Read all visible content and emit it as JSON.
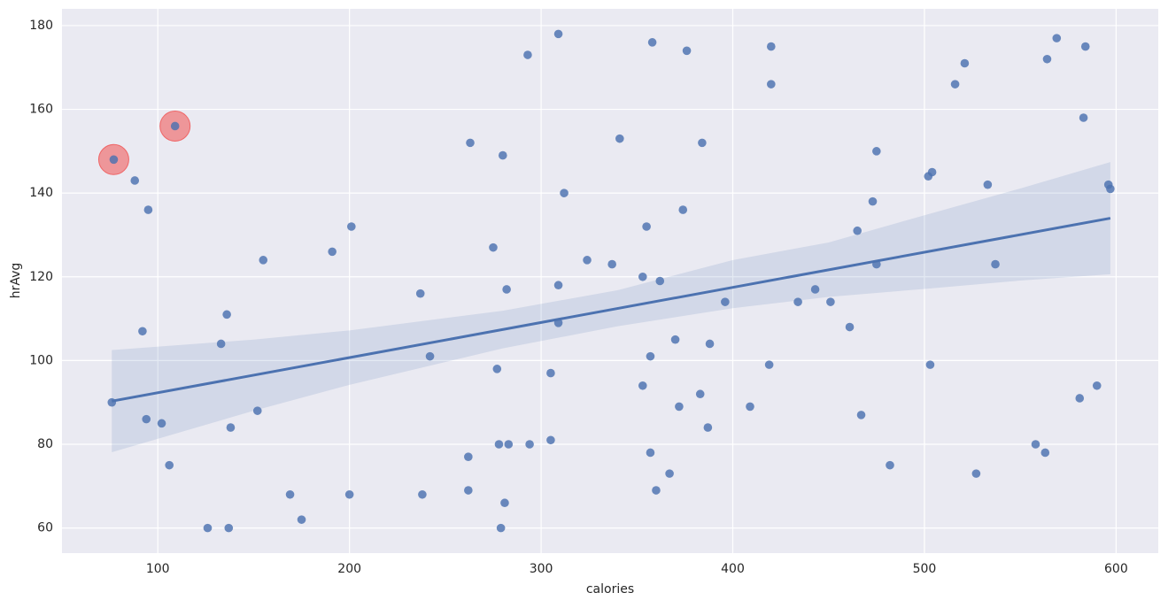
{
  "chart_data": {
    "type": "scatter",
    "x_label": "calories",
    "y_label": "hrAvg",
    "xlim": [
      50,
      622
    ],
    "ylim": [
      54,
      184
    ],
    "xticks": [
      100,
      200,
      300,
      400,
      500,
      600
    ],
    "yticks": [
      60,
      80,
      100,
      120,
      140,
      160,
      180
    ],
    "grid": true,
    "background": "#eaeaf2",
    "series": [
      {
        "color": "#4c72b0",
        "x": [
          76,
          77,
          88,
          95,
          92,
          94,
          102,
          106,
          109,
          126,
          137,
          136,
          133,
          138,
          152,
          155,
          169,
          175,
          191,
          201,
          200,
          237,
          238,
          242,
          263,
          262,
          262,
          275,
          280,
          282,
          277,
          278,
          283,
          281,
          279,
          293,
          294,
          309,
          312,
          309,
          309,
          305,
          305,
          324,
          337,
          341,
          353,
          355,
          353,
          358,
          362,
          357,
          357,
          360,
          367,
          370,
          372,
          374,
          376,
          384,
          383,
          388,
          387,
          396,
          409,
          419,
          420,
          420,
          434,
          443,
          451,
          461,
          465,
          467,
          473,
          475,
          475,
          482,
          502,
          504,
          503,
          516,
          521,
          527,
          533,
          537,
          558,
          563,
          564,
          569,
          581,
          583,
          584,
          590,
          596,
          597
        ],
        "values": [
          90,
          148,
          143,
          136,
          107,
          86,
          85,
          75,
          156,
          60,
          60,
          111,
          104,
          84,
          88,
          124,
          68,
          62,
          126,
          132,
          68,
          116,
          68,
          101,
          152,
          77,
          69,
          127,
          149,
          117,
          98,
          80,
          80,
          66,
          60,
          173,
          80,
          178,
          140,
          118,
          109,
          97,
          81,
          124,
          123,
          153,
          120,
          132,
          94,
          176,
          119,
          101,
          78,
          69,
          73,
          105,
          89,
          136,
          174,
          152,
          92,
          104,
          84,
          114,
          89,
          99,
          175,
          166,
          114,
          117,
          114,
          108,
          131,
          87,
          138,
          150,
          123,
          75,
          144,
          145,
          99,
          166,
          171,
          73,
          142,
          123,
          80,
          78,
          172,
          177,
          91,
          158,
          175,
          94,
          142,
          141
        ]
      }
    ],
    "highlight": {
      "color": "#f05050",
      "x": [
        77,
        109
      ],
      "values": [
        148,
        156
      ]
    },
    "regression": {
      "color": "#4c72b0",
      "x": [
        76,
        597
      ],
      "values": [
        90.3,
        134.0
      ]
    },
    "band": {
      "color": "#4c72b0",
      "x": [
        76,
        150,
        200,
        280,
        340,
        400,
        450,
        500,
        550,
        597
      ],
      "upper": [
        102.5,
        105,
        107.2,
        111.9,
        116.8,
        124,
        128.2,
        134.7,
        141.1,
        147.4
      ],
      "lower": [
        78.1,
        88,
        94.2,
        102.9,
        108.2,
        112.5,
        115.2,
        117.1,
        119.1,
        120.6
      ]
    }
  }
}
